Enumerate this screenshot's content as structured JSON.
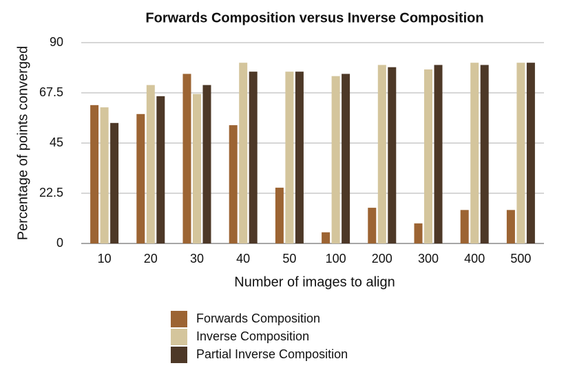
{
  "chart_data": {
    "type": "bar",
    "title": "Forwards Composition versus Inverse Composition",
    "x_label": "Number of images to align",
    "y_label": "Percentage of points converged",
    "categories": [
      "10",
      "20",
      "30",
      "40",
      "50",
      "100",
      "200",
      "300",
      "400",
      "500"
    ],
    "series": [
      {
        "name": "Forwards Composition",
        "color": "#9c6433",
        "values": [
          62,
          58,
          76,
          53,
          25,
          5,
          16,
          9,
          15,
          15
        ]
      },
      {
        "name": "Inverse Composition",
        "color": "#d4c59c",
        "values": [
          61,
          71,
          67,
          81,
          77,
          75,
          80,
          78,
          81,
          81
        ]
      },
      {
        "name": "Partial Inverse Composition",
        "color": "#4d3827",
        "values": [
          54,
          66,
          71,
          77,
          77,
          76,
          79,
          80,
          80,
          81
        ]
      }
    ],
    "ylim": [
      0,
      90
    ],
    "yticks": [
      0,
      22.5,
      45,
      67.5,
      90
    ],
    "grid": true
  }
}
